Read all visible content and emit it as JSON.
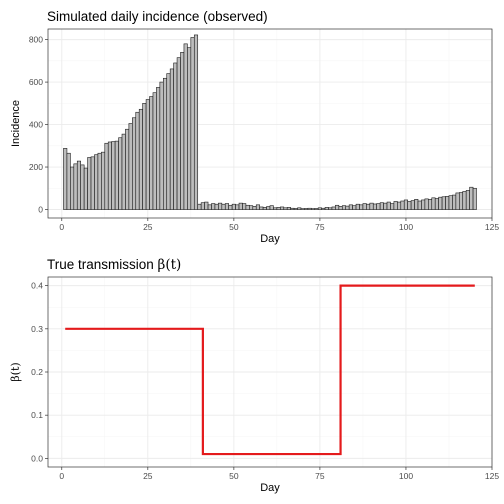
{
  "figure": {
    "background": "#ffffff",
    "grid_major_color": "#ebebeb",
    "grid_minor_color": "#f4f4f4",
    "panel_border_color": "#333333"
  },
  "chart_data": [
    {
      "type": "bar",
      "title": "Simulated daily incidence (observed)",
      "xlabel": "Day",
      "ylabel": "Incidence",
      "xlim": [
        -4,
        125
      ],
      "ylim": [
        -40,
        850
      ],
      "x_ticks": [
        0,
        25,
        50,
        75,
        100,
        125
      ],
      "x_tick_labels": [
        "0",
        "25",
        "50",
        "75",
        "100",
        "125"
      ],
      "y_ticks": [
        0,
        200,
        400,
        600,
        800
      ],
      "y_tick_labels": [
        "0",
        "200",
        "400",
        "600",
        "800"
      ],
      "grid": true,
      "bar_fill": "#bdbdbd",
      "bar_edge": "#1a1a1a",
      "x": [
        1,
        2,
        3,
        4,
        5,
        6,
        7,
        8,
        9,
        10,
        11,
        12,
        13,
        14,
        15,
        16,
        17,
        18,
        19,
        20,
        21,
        22,
        23,
        24,
        25,
        26,
        27,
        28,
        29,
        30,
        31,
        32,
        33,
        34,
        35,
        36,
        37,
        38,
        39,
        40,
        41,
        42,
        43,
        44,
        45,
        46,
        47,
        48,
        49,
        50,
        51,
        52,
        53,
        54,
        55,
        56,
        57,
        58,
        59,
        60,
        61,
        62,
        63,
        64,
        65,
        66,
        67,
        68,
        69,
        70,
        71,
        72,
        73,
        74,
        75,
        76,
        77,
        78,
        79,
        80,
        81,
        82,
        83,
        84,
        85,
        86,
        87,
        88,
        89,
        90,
        91,
        92,
        93,
        94,
        95,
        96,
        97,
        98,
        99,
        100,
        101,
        102,
        103,
        104,
        105,
        106,
        107,
        108,
        109,
        110,
        111,
        112,
        113,
        114,
        115,
        116,
        117,
        118,
        119,
        120
      ],
      "values": [
        288,
        265,
        200,
        215,
        228,
        210,
        195,
        245,
        248,
        258,
        265,
        270,
        312,
        318,
        320,
        322,
        338,
        355,
        378,
        405,
        432,
        458,
        472,
        500,
        518,
        532,
        550,
        575,
        600,
        618,
        640,
        662,
        690,
        715,
        740,
        780,
        762,
        810,
        822,
        25,
        32,
        35,
        22,
        28,
        25,
        30,
        25,
        28,
        20,
        25,
        22,
        30,
        28,
        20,
        18,
        15,
        22,
        12,
        10,
        14,
        18,
        8,
        10,
        12,
        8,
        10,
        6,
        5,
        8,
        4,
        5,
        6,
        4,
        5,
        8,
        6,
        10,
        8,
        12,
        20,
        15,
        18,
        16,
        22,
        18,
        25,
        22,
        28,
        25,
        30,
        26,
        28,
        32,
        30,
        35,
        28,
        38,
        35,
        40,
        45,
        38,
        42,
        48,
        40,
        45,
        50,
        48,
        55,
        52,
        58,
        60,
        62,
        65,
        68,
        78,
        80,
        85,
        90,
        105,
        100
      ]
    },
    {
      "type": "line",
      "title_prefix": "True transmission ",
      "title_symbol": "β(t)",
      "xlabel": "Day",
      "ylabel": "β(t)",
      "xlim": [
        -4,
        125
      ],
      "ylim": [
        -0.02,
        0.42
      ],
      "x_ticks": [
        0,
        25,
        50,
        75,
        100,
        125
      ],
      "x_tick_labels": [
        "0",
        "25",
        "50",
        "75",
        "100",
        "125"
      ],
      "y_ticks": [
        0,
        0.1,
        0.2,
        0.3,
        0.4
      ],
      "y_tick_labels": [
        "0.0",
        "0.1",
        "0.2",
        "0.3",
        "0.4"
      ],
      "grid": true,
      "line_color": "#e41a1c",
      "x": [
        1,
        41,
        41,
        81,
        81,
        120
      ],
      "y": [
        0.3,
        0.3,
        0.01,
        0.01,
        0.4,
        0.4
      ]
    }
  ]
}
